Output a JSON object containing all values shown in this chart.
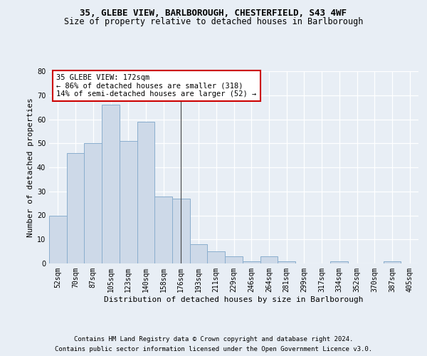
{
  "title_line1": "35, GLEBE VIEW, BARLBOROUGH, CHESTERFIELD, S43 4WF",
  "title_line2": "Size of property relative to detached houses in Barlborough",
  "xlabel": "Distribution of detached houses by size in Barlborough",
  "ylabel": "Number of detached properties",
  "categories": [
    "52sqm",
    "70sqm",
    "87sqm",
    "105sqm",
    "123sqm",
    "140sqm",
    "158sqm",
    "176sqm",
    "193sqm",
    "211sqm",
    "229sqm",
    "246sqm",
    "264sqm",
    "281sqm",
    "299sqm",
    "317sqm",
    "334sqm",
    "352sqm",
    "370sqm",
    "387sqm",
    "405sqm"
  ],
  "values": [
    20,
    46,
    50,
    66,
    51,
    59,
    28,
    27,
    8,
    5,
    3,
    1,
    3,
    1,
    0,
    0,
    1,
    0,
    0,
    1,
    0
  ],
  "bar_color": "#cdd9e8",
  "bar_edge_color": "#8aaece",
  "highlight_bar_index": 7,
  "highlight_line_color": "#444444",
  "ylim": [
    0,
    80
  ],
  "yticks": [
    0,
    10,
    20,
    30,
    40,
    50,
    60,
    70,
    80
  ],
  "annotation_text": "35 GLEBE VIEW: 172sqm\n← 86% of detached houses are smaller (318)\n14% of semi-detached houses are larger (52) →",
  "annotation_box_color": "#ffffff",
  "annotation_box_edge": "#cc0000",
  "footer_line1": "Contains HM Land Registry data © Crown copyright and database right 2024.",
  "footer_line2": "Contains public sector information licensed under the Open Government Licence v3.0.",
  "bg_color": "#e8eef5",
  "plot_bg_color": "#e8eef5",
  "grid_color": "#ffffff",
  "title_fontsize": 9,
  "subtitle_fontsize": 8.5,
  "axis_label_fontsize": 8,
  "tick_fontsize": 7,
  "annotation_fontsize": 7.5,
  "footer_fontsize": 6.5
}
